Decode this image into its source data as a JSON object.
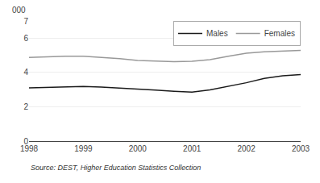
{
  "chart_data": {
    "type": "line",
    "ylabel": "000",
    "x": [
      1998,
      1998.33,
      1998.67,
      1999,
      1999.33,
      1999.67,
      2000,
      2000.33,
      2000.67,
      2001,
      2001.33,
      2001.67,
      2002,
      2002.33,
      2002.67,
      2003
    ],
    "series": [
      {
        "name": "Males",
        "color": "#1a1a1a",
        "values": [
          3.1,
          3.13,
          3.16,
          3.18,
          3.15,
          3.1,
          3.03,
          2.97,
          2.9,
          2.85,
          2.98,
          3.2,
          3.4,
          3.65,
          3.8,
          3.87
        ]
      },
      {
        "name": "Females",
        "color": "#999999",
        "values": [
          4.88,
          4.92,
          4.95,
          4.95,
          4.88,
          4.8,
          4.7,
          4.65,
          4.63,
          4.65,
          4.75,
          4.95,
          5.12,
          5.2,
          5.25,
          5.28
        ]
      }
    ],
    "xlim": [
      1998,
      2003
    ],
    "xticks": [
      1998,
      1999,
      2000,
      2001,
      2002,
      2003
    ],
    "ylim": [
      0,
      7
    ],
    "yticks": [
      0,
      2,
      4,
      6,
      7
    ],
    "grid": true,
    "legend": "upper right",
    "annotations": [
      "Source: DEST, Higher Education Statistics Collection"
    ]
  }
}
